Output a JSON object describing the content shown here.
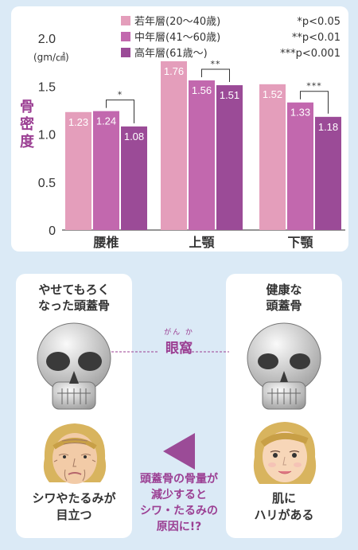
{
  "chart_data": {
    "type": "bar",
    "ylabel": "骨密度",
    "unit_line1": "2.0",
    "unit_line2": "(gm/㎠)",
    "ylim": [
      0,
      2.0
    ],
    "yticks": [
      "0",
      "0.5",
      "1.0",
      "1.5"
    ],
    "categories": [
      "腰椎",
      "上顎",
      "下顎"
    ],
    "series": [
      {
        "name": "若年層(20～40歳)",
        "color": "#e49ebb",
        "values": [
          1.23,
          1.76,
          1.52
        ]
      },
      {
        "name": "中年層(41～60歳)",
        "color": "#c268ae",
        "values": [
          1.24,
          1.56,
          1.33
        ]
      },
      {
        "name": "高年層(61歳～)",
        "color": "#9b4b97",
        "values": [
          1.08,
          1.51,
          1.18
        ]
      }
    ],
    "value_labels": [
      [
        "1.23",
        "1.76",
        "1.52"
      ],
      [
        "1.24",
        "1.56",
        "1.33"
      ],
      [
        "1.08",
        "1.51",
        "1.18"
      ]
    ],
    "significance": [
      {
        "category_index": 0,
        "from_series": 1,
        "to_series": 2,
        "stars": "*"
      },
      {
        "category_index": 1,
        "from_series": 1,
        "to_series": 2,
        "stars": "**"
      },
      {
        "category_index": 2,
        "from_series": 1,
        "to_series": 2,
        "stars": "***"
      }
    ],
    "significance_legend": [
      "*p<0.05",
      "**p<0.01",
      "***p<0.001"
    ],
    "grid": false,
    "legend_position": "top"
  },
  "illustration": {
    "left_title": "やせてもろく\nなった頭蓋骨",
    "right_title": "健康な\n頭蓋骨",
    "orbit_ruby": "がん か",
    "orbit_label": "眼窩",
    "left_caption": "シワやたるみが\n目立つ",
    "right_caption": "肌に\nハリがある",
    "note": "頭蓋骨の骨量が\n減少すると\nシワ・たるみの\n原因に!?",
    "arrow_color": "#9b4b97",
    "skull_icon": "skull-icon",
    "old_face_icon": "elderly-woman-face-icon",
    "young_face_icon": "young-woman-face-icon"
  }
}
